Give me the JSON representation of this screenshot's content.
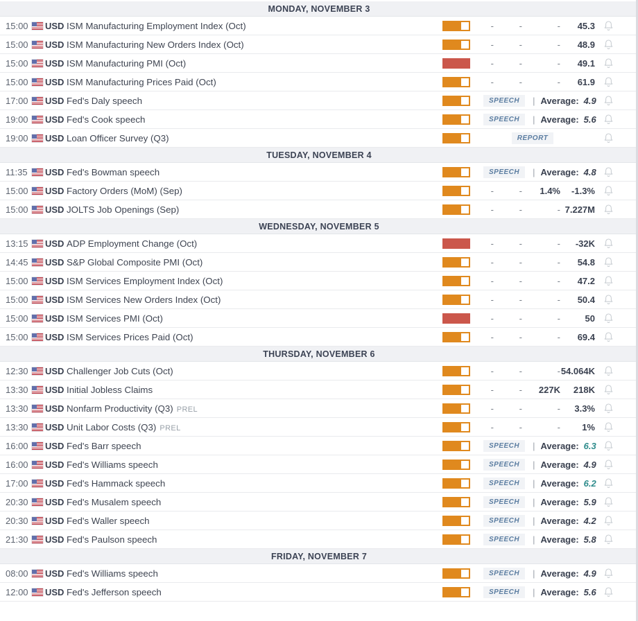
{
  "labels": {
    "separator": "|",
    "average": "Average:"
  },
  "colors": {
    "volatility_medium": "#e0891e",
    "volatility_high": "#cb574b",
    "speech_badge_text": "#5b7da1",
    "average_highlight_teal": "#2f8c8c",
    "day_header_bg": "#f0f1f4"
  },
  "days": [
    {
      "header": "MONDAY, NOVEMBER 3",
      "events": [
        {
          "time": "15:00",
          "currency": "USD",
          "name": "ISM Manufacturing Employment Index (Oct)",
          "vol": "medium",
          "kind": "values",
          "cells": [
            "-",
            "-",
            "-",
            "45.3"
          ]
        },
        {
          "time": "15:00",
          "currency": "USD",
          "name": "ISM Manufacturing New Orders Index (Oct)",
          "vol": "medium",
          "kind": "values",
          "cells": [
            "-",
            "-",
            "-",
            "48.9"
          ]
        },
        {
          "time": "15:00",
          "currency": "USD",
          "name": "ISM Manufacturing PMI (Oct)",
          "vol": "high",
          "kind": "values",
          "cells": [
            "-",
            "-",
            "-",
            "49.1"
          ]
        },
        {
          "time": "15:00",
          "currency": "USD",
          "name": "ISM Manufacturing Prices Paid (Oct)",
          "vol": "medium",
          "kind": "values",
          "cells": [
            "-",
            "-",
            "-",
            "61.9"
          ]
        },
        {
          "time": "17:00",
          "currency": "USD",
          "name": "Fed's Daly speech",
          "vol": "medium",
          "kind": "speech",
          "badge": "SPEECH",
          "average": "4.9",
          "teal": false
        },
        {
          "time": "19:00",
          "currency": "USD",
          "name": "Fed's Cook speech",
          "vol": "medium",
          "kind": "speech",
          "badge": "SPEECH",
          "average": "5.6",
          "teal": false
        },
        {
          "time": "19:00",
          "currency": "USD",
          "name": "Loan Officer Survey (Q3)",
          "vol": "medium",
          "kind": "report",
          "badge": "REPORT"
        }
      ]
    },
    {
      "header": "TUESDAY, NOVEMBER 4",
      "events": [
        {
          "time": "11:35",
          "currency": "USD",
          "name": "Fed's Bowman speech",
          "vol": "medium",
          "kind": "speech",
          "badge": "SPEECH",
          "average": "4.8",
          "teal": false
        },
        {
          "time": "15:00",
          "currency": "USD",
          "name": "Factory Orders (MoM) (Sep)",
          "vol": "medium",
          "kind": "values",
          "cells": [
            "-",
            "-",
            "1.4%",
            "-1.3%"
          ]
        },
        {
          "time": "15:00",
          "currency": "USD",
          "name": "JOLTS Job Openings (Sep)",
          "vol": "medium",
          "kind": "values",
          "cells": [
            "-",
            "-",
            "-",
            "7.227M"
          ]
        }
      ]
    },
    {
      "header": "WEDNESDAY, NOVEMBER 5",
      "events": [
        {
          "time": "13:15",
          "currency": "USD",
          "name": "ADP Employment Change (Oct)",
          "vol": "high",
          "kind": "values",
          "cells": [
            "-",
            "-",
            "-",
            "-32K"
          ]
        },
        {
          "time": "14:45",
          "currency": "USD",
          "name": "S&P Global Composite PMI (Oct)",
          "vol": "medium",
          "kind": "values",
          "cells": [
            "-",
            "-",
            "-",
            "54.8"
          ]
        },
        {
          "time": "15:00",
          "currency": "USD",
          "name": "ISM Services Employment Index (Oct)",
          "vol": "medium",
          "kind": "values",
          "cells": [
            "-",
            "-",
            "-",
            "47.2"
          ]
        },
        {
          "time": "15:00",
          "currency": "USD",
          "name": "ISM Services New Orders Index (Oct)",
          "vol": "medium",
          "kind": "values",
          "cells": [
            "-",
            "-",
            "-",
            "50.4"
          ]
        },
        {
          "time": "15:00",
          "currency": "USD",
          "name": "ISM Services PMI (Oct)",
          "vol": "high",
          "kind": "values",
          "cells": [
            "-",
            "-",
            "-",
            "50"
          ]
        },
        {
          "time": "15:00",
          "currency": "USD",
          "name": "ISM Services Prices Paid (Oct)",
          "vol": "medium",
          "kind": "values",
          "cells": [
            "-",
            "-",
            "-",
            "69.4"
          ]
        }
      ]
    },
    {
      "header": "THURSDAY, NOVEMBER 6",
      "events": [
        {
          "time": "12:30",
          "currency": "USD",
          "name": "Challenger Job Cuts (Oct)",
          "vol": "medium",
          "kind": "values",
          "cells": [
            "-",
            "-",
            "-",
            "54.064K"
          ]
        },
        {
          "time": "13:30",
          "currency": "USD",
          "name": "Initial Jobless Claims",
          "vol": "medium",
          "kind": "values",
          "cells": [
            "-",
            "-",
            "227K",
            "218K"
          ]
        },
        {
          "time": "13:30",
          "currency": "USD",
          "name": "Nonfarm Productivity (Q3)",
          "prel": "PREL",
          "vol": "medium",
          "kind": "values",
          "cells": [
            "-",
            "-",
            "-",
            "3.3%"
          ]
        },
        {
          "time": "13:30",
          "currency": "USD",
          "name": "Unit Labor Costs (Q3)",
          "prel": "PREL",
          "vol": "medium",
          "kind": "values",
          "cells": [
            "-",
            "-",
            "-",
            "1%"
          ]
        },
        {
          "time": "16:00",
          "currency": "USD",
          "name": "Fed's Barr speech",
          "vol": "medium",
          "kind": "speech",
          "badge": "SPEECH",
          "average": "6.3",
          "teal": true
        },
        {
          "time": "16:00",
          "currency": "USD",
          "name": "Fed's Williams speech",
          "vol": "medium",
          "kind": "speech",
          "badge": "SPEECH",
          "average": "4.9",
          "teal": false
        },
        {
          "time": "17:00",
          "currency": "USD",
          "name": "Fed's Hammack speech",
          "vol": "medium",
          "kind": "speech",
          "badge": "SPEECH",
          "average": "6.2",
          "teal": true
        },
        {
          "time": "20:30",
          "currency": "USD",
          "name": "Fed's Musalem speech",
          "vol": "medium",
          "kind": "speech",
          "badge": "SPEECH",
          "average": "5.9",
          "teal": false
        },
        {
          "time": "20:30",
          "currency": "USD",
          "name": "Fed's Waller speech",
          "vol": "medium",
          "kind": "speech",
          "badge": "SPEECH",
          "average": "4.2",
          "teal": false
        },
        {
          "time": "21:30",
          "currency": "USD",
          "name": "Fed's Paulson speech",
          "vol": "medium",
          "kind": "speech",
          "badge": "SPEECH",
          "average": "5.8",
          "teal": false
        }
      ]
    },
    {
      "header": "FRIDAY, NOVEMBER 7",
      "events": [
        {
          "time": "08:00",
          "currency": "USD",
          "name": "Fed's Williams speech",
          "vol": "medium",
          "kind": "speech",
          "badge": "SPEECH",
          "average": "4.9",
          "teal": false
        },
        {
          "time": "12:00",
          "currency": "USD",
          "name": "Fed's Jefferson speech",
          "vol": "medium",
          "kind": "speech",
          "badge": "SPEECH",
          "average": "5.6",
          "teal": false
        }
      ]
    }
  ]
}
